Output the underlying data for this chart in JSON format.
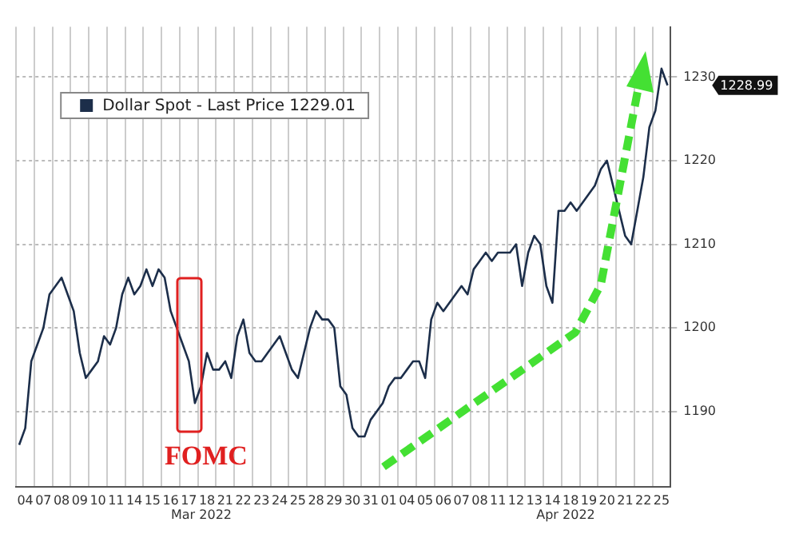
{
  "chart_data": {
    "type": "line",
    "categories": [
      null,
      "04",
      null,
      null,
      "07",
      null,
      null,
      "08",
      null,
      null,
      "09",
      null,
      null,
      "10",
      null,
      null,
      "11",
      null,
      null,
      "14",
      null,
      null,
      "15",
      null,
      null,
      "16",
      null,
      null,
      "17",
      null,
      null,
      "18",
      null,
      null,
      "21",
      null,
      null,
      "22",
      null,
      null,
      "23",
      null,
      null,
      "24",
      null,
      null,
      "25",
      null,
      null,
      "28",
      null,
      null,
      "29",
      null,
      null,
      "30",
      null,
      null,
      "31",
      null,
      null,
      "01",
      null,
      null,
      "04",
      null,
      null,
      "05",
      null,
      null,
      "06",
      null,
      null,
      "07",
      null,
      null,
      "08",
      null,
      null,
      "11",
      null,
      null,
      "12",
      null,
      null,
      "13",
      null,
      null,
      "14",
      null,
      null,
      "18",
      null,
      null,
      "19",
      null,
      null,
      "20",
      null,
      null,
      "21",
      null,
      null,
      "22",
      null,
      null,
      "25",
      null
    ],
    "series": [
      {
        "name": "Dollar Spot - Last Price 1229.01",
        "color": "#1c2e4a",
        "values": [
          1186,
          1188,
          1196,
          1198,
          1200,
          1204,
          1205,
          1206,
          1204,
          1202,
          1197,
          1194,
          1195,
          1196,
          1199,
          1198,
          1200,
          1204,
          1206,
          1204,
          1205,
          1207,
          1205,
          1207,
          1206,
          1202,
          1200,
          1198,
          1196,
          1191,
          1193,
          1197,
          1195,
          1195,
          1196,
          1194,
          1199,
          1201,
          1197,
          1196,
          1196,
          1197,
          1198,
          1199,
          1197,
          1195,
          1194,
          1197,
          1200,
          1202,
          1201,
          1201,
          1200,
          1193,
          1192,
          1188,
          1187,
          1187,
          1189,
          1190,
          1191,
          1193,
          1194,
          1194,
          1195,
          1196,
          1196,
          1194,
          1201,
          1203,
          1202,
          1203,
          1204,
          1205,
          1204,
          1207,
          1208,
          1209,
          1208,
          1209,
          1209,
          1209,
          1210,
          1205,
          1209,
          1211,
          1210,
          1205,
          1203,
          1214,
          1214,
          1215,
          1214,
          1215,
          1216,
          1217,
          1219,
          1220,
          1217,
          1214,
          1211,
          1210,
          1214,
          1218,
          1224,
          1226,
          1231,
          1229
        ]
      }
    ],
    "ylim": [
      1181,
      1236
    ],
    "yticks": [
      1190,
      1200,
      1210,
      1220,
      1230
    ],
    "grid": true,
    "legend": "top left",
    "marker": "none",
    "line_style": "solid",
    "annotations": [
      "FOMC",
      "Mar 2022",
      "Apr 2022",
      "1228.99"
    ]
  }
}
